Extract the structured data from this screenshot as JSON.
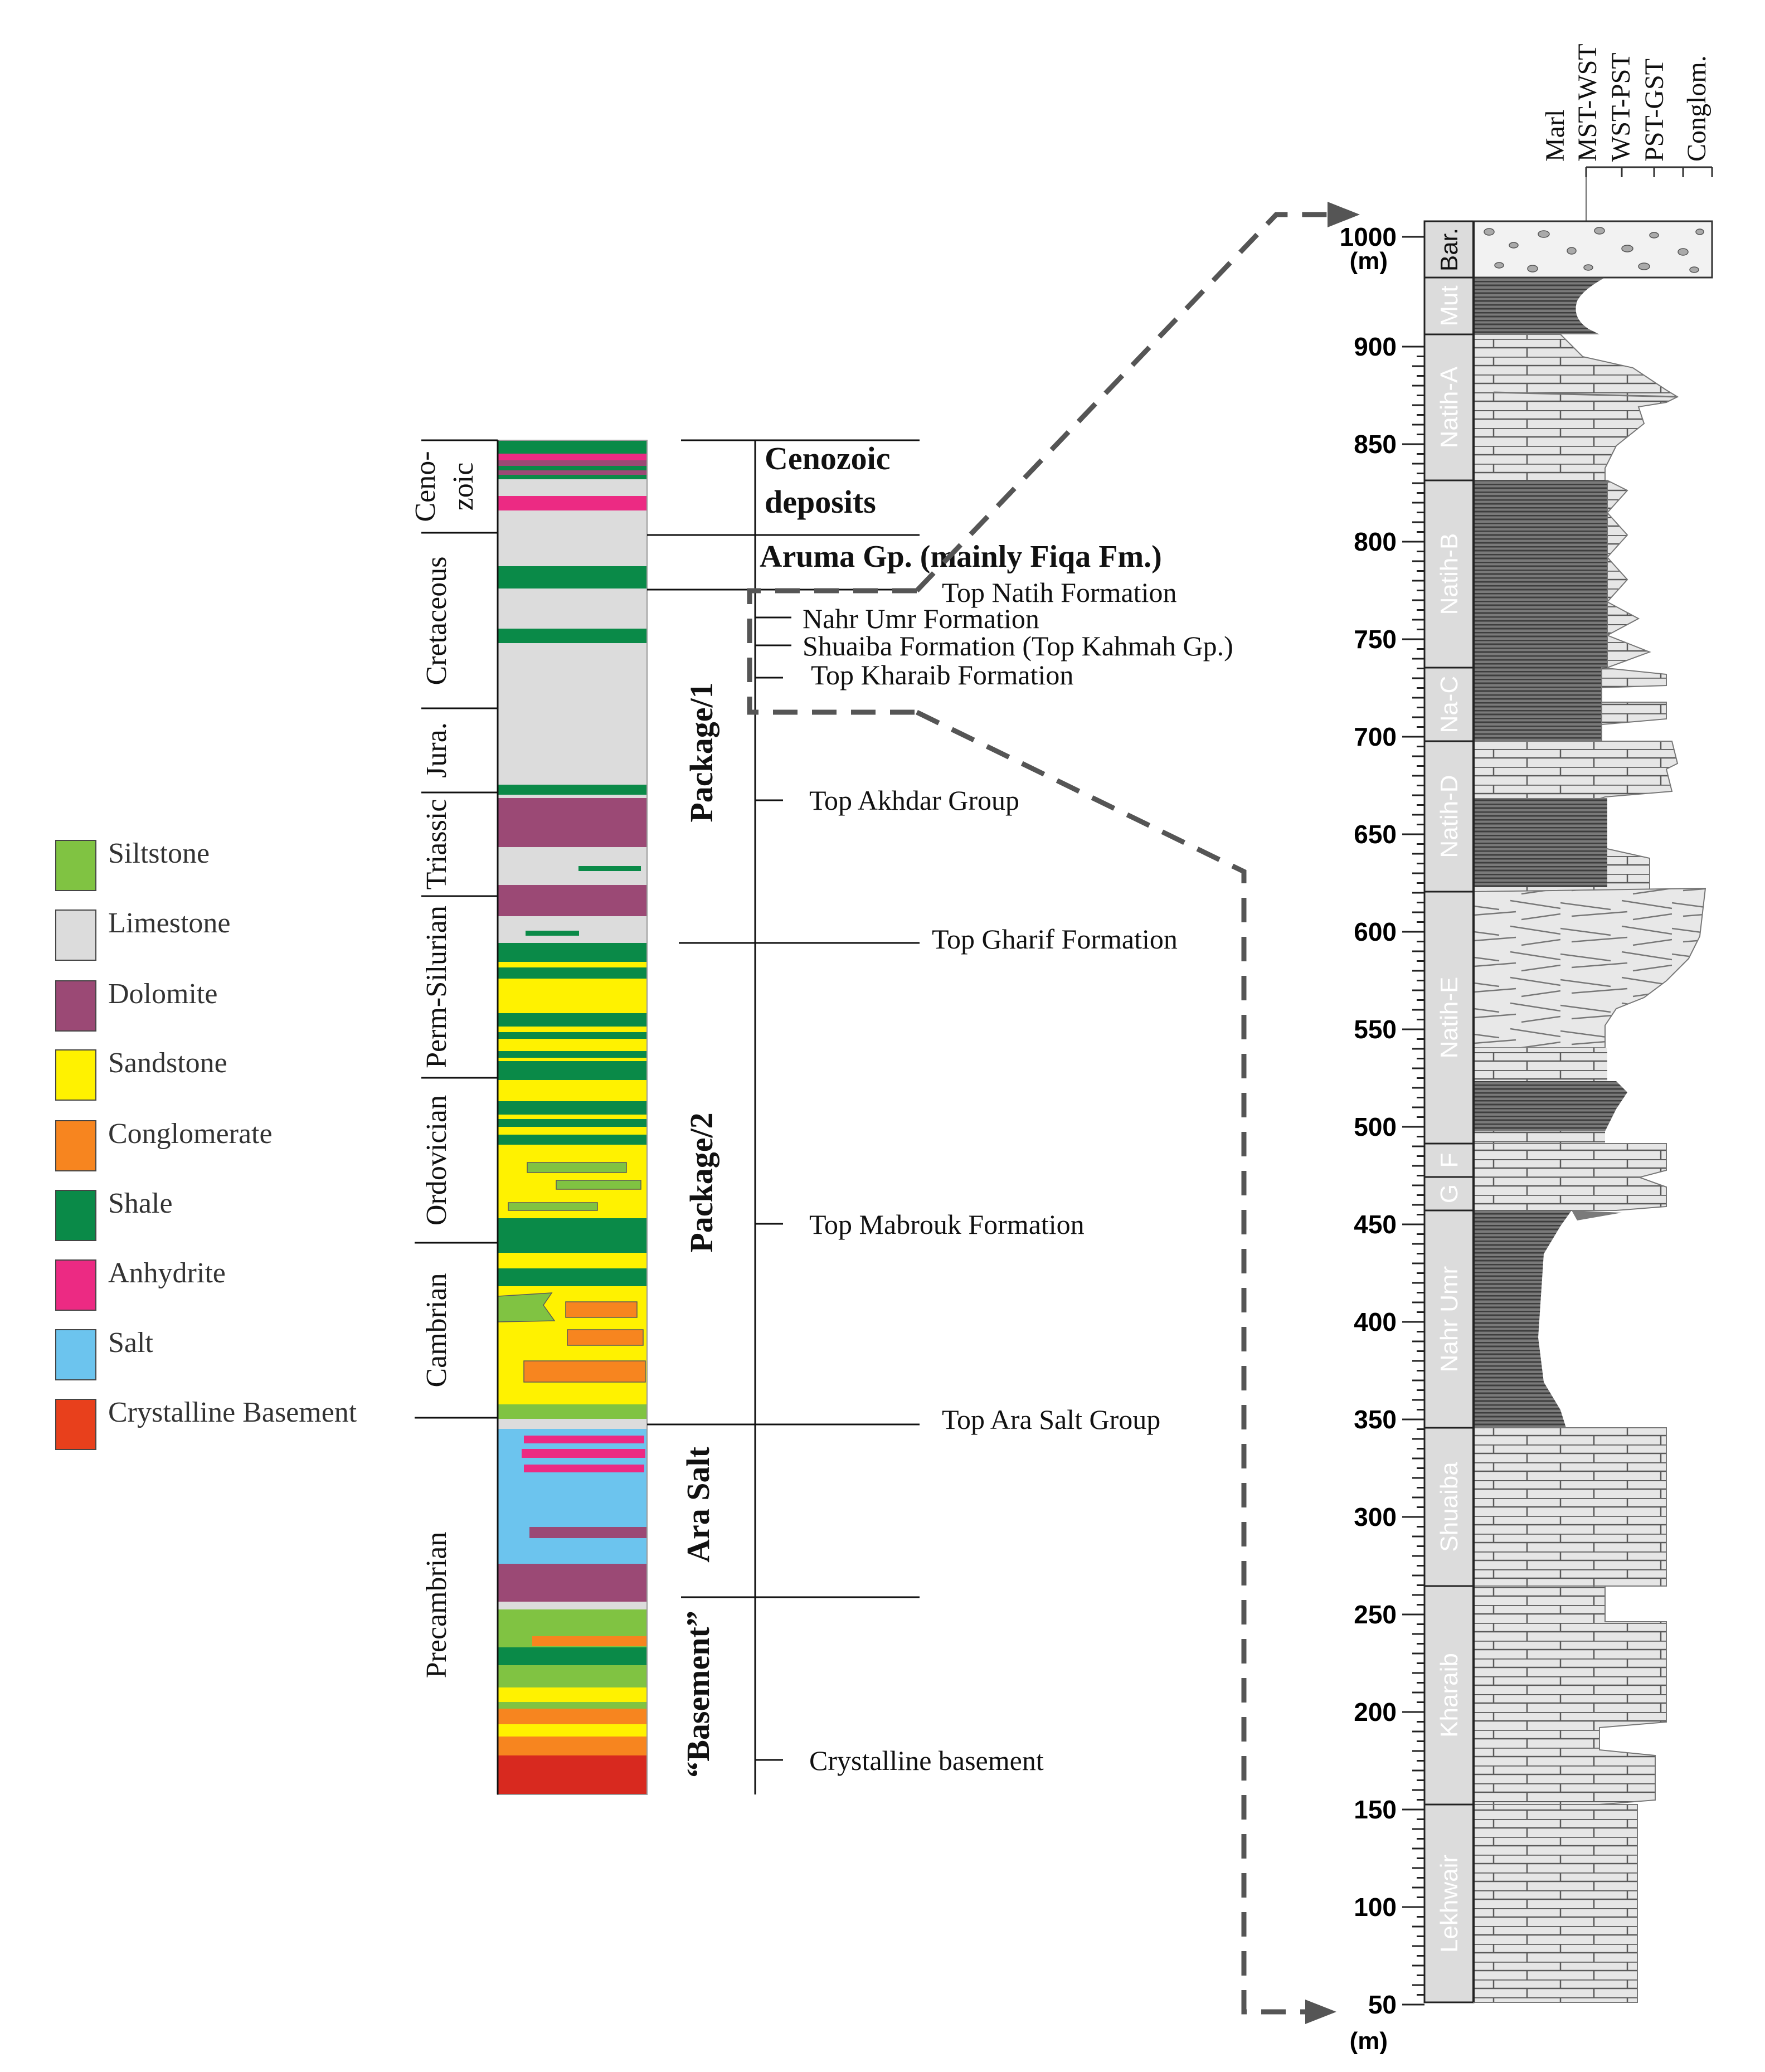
{
  "legend": [
    {
      "label": "Siltstone",
      "color": "#80c342"
    },
    {
      "label": "Limestone",
      "color": "#dcdcdc"
    },
    {
      "label": "Dolomite",
      "color": "#9b4975"
    },
    {
      "label": "Sandstone",
      "color": "#fff200"
    },
    {
      "label": "Conglomerate",
      "color": "#f7851f"
    },
    {
      "label": "Shale",
      "color": "#0a8a48"
    },
    {
      "label": "Anhydrite",
      "color": "#ec2a83"
    },
    {
      "label": "Salt",
      "color": "#6cc4ee"
    },
    {
      "label": "Crystalline Basement",
      "color": "#e8401c"
    }
  ],
  "periods": {
    "cenozoic_1": "Ceno-",
    "cenozoic_2": "zoic",
    "cretaceous": "Cretaceous",
    "jurassic": "Jura.",
    "triassic": "Triassic",
    "perm_silurian": "Perm-Silurian",
    "ordovician": "Ordovician",
    "cambrian": "Cambrian",
    "precambrian": "Precambrian"
  },
  "packages": {
    "cenozoic_1": "Cenozoic",
    "cenozoic_2": "deposits",
    "aruma": "Aruma Gp. (mainly Fiqa Fm.)",
    "package1": "Package/1",
    "package2": "Package/2",
    "ara_salt": "Ara Salt",
    "basement": "“Basement”"
  },
  "formation_tops": {
    "natih": "Top Natih Formation",
    "nahr_umr": "Nahr Umr Formation",
    "shuaiba": "Shuaiba Formation (Top Kahmah Gp.)",
    "kharaib": "Top Kharaib Formation",
    "akhdar": "Top Akhdar Group",
    "gharif": "Top Gharif Formation",
    "mabrouk": "Top Mabrouk Formation",
    "ara": "Top Ara Salt Group",
    "crystalline": "Crystalline basement"
  },
  "texture_header": [
    "Marl",
    "MST-WST",
    "WST-PST",
    "PST-GST",
    "Conglom."
  ],
  "depth_unit": "(m)",
  "depth_ticks": [
    1000,
    900,
    850,
    800,
    750,
    700,
    650,
    600,
    550,
    500,
    450,
    400,
    350,
    300,
    250,
    200,
    150,
    100,
    50
  ],
  "units": {
    "bar": "Bar.",
    "mut": "Mut",
    "natih_a": "Natih-A",
    "natih_b": "Natih-B",
    "na_c": "Na-C",
    "natih_d": "Natih-D",
    "natih_e": "Natih-E",
    "f": "F",
    "g": "G",
    "nahr_umr": "Nahr Umr",
    "shuaiba": "Shuaiba",
    "kharaib": "Kharaib",
    "lekhwair": "Lekhwair"
  }
}
